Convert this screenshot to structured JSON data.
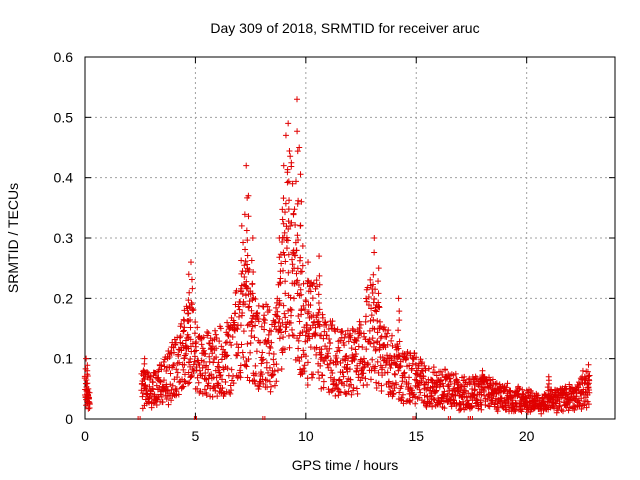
{
  "chart_data": {
    "type": "scatter",
    "title": "Day 309 of 2018, SRMTID for receiver aruc",
    "xlabel": "GPS time / hours",
    "ylabel": "SRMTID / TECUs",
    "xlim": [
      0,
      24
    ],
    "ylim": [
      0,
      0.6
    ],
    "xticks": [
      0,
      5,
      10,
      15,
      20
    ],
    "yticks": [
      0,
      0.1,
      0.2,
      0.3,
      0.4,
      0.5,
      0.6
    ],
    "xtick_labels": [
      "0",
      "5",
      "10",
      "15",
      "20"
    ],
    "ytick_labels": [
      "0",
      "0.1",
      "0.2",
      "0.3",
      "0.4",
      "0.5",
      "0.6"
    ],
    "grid": true,
    "legend": "none",
    "marker": "+",
    "color": "#e00000",
    "envelope": [
      [
        0.0,
        0.06
      ],
      [
        0.2,
        0.02
      ],
      [
        2.6,
        0.06
      ],
      [
        3.2,
        0.06
      ],
      [
        3.8,
        0.08
      ],
      [
        4.4,
        0.12
      ],
      [
        4.8,
        0.15
      ],
      [
        5.2,
        0.1
      ],
      [
        5.6,
        0.1
      ],
      [
        6.2,
        0.11
      ],
      [
        6.6,
        0.12
      ],
      [
        7.0,
        0.18
      ],
      [
        7.3,
        0.2
      ],
      [
        7.8,
        0.13
      ],
      [
        8.2,
        0.14
      ],
      [
        8.6,
        0.13
      ],
      [
        9.0,
        0.25
      ],
      [
        9.3,
        0.33
      ],
      [
        9.6,
        0.22
      ],
      [
        10.0,
        0.16
      ],
      [
        10.4,
        0.18
      ],
      [
        10.8,
        0.12
      ],
      [
        11.2,
        0.12
      ],
      [
        11.8,
        0.1
      ],
      [
        12.4,
        0.11
      ],
      [
        12.9,
        0.17
      ],
      [
        13.3,
        0.14
      ],
      [
        13.8,
        0.1
      ],
      [
        14.4,
        0.08
      ],
      [
        15.0,
        0.08
      ],
      [
        15.6,
        0.06
      ],
      [
        16.3,
        0.06
      ],
      [
        17.0,
        0.05
      ],
      [
        17.6,
        0.05
      ],
      [
        18.2,
        0.05
      ],
      [
        19.0,
        0.04
      ],
      [
        20.0,
        0.035
      ],
      [
        20.8,
        0.03
      ],
      [
        21.6,
        0.04
      ],
      [
        22.2,
        0.045
      ],
      [
        22.8,
        0.06
      ]
    ],
    "peaks": [
      [
        0.05,
        0.1
      ],
      [
        0.1,
        0.08
      ],
      [
        0.15,
        0.05
      ],
      [
        2.7,
        0.1
      ],
      [
        4.5,
        0.18
      ],
      [
        4.7,
        0.24
      ],
      [
        4.8,
        0.26
      ],
      [
        7.1,
        0.32
      ],
      [
        7.3,
        0.42
      ],
      [
        7.4,
        0.37
      ],
      [
        7.6,
        0.3
      ],
      [
        8.8,
        0.3
      ],
      [
        9.0,
        0.42
      ],
      [
        9.1,
        0.47
      ],
      [
        9.2,
        0.49
      ],
      [
        9.4,
        0.39
      ],
      [
        9.6,
        0.53
      ],
      [
        9.7,
        0.45
      ],
      [
        9.8,
        0.36
      ],
      [
        10.1,
        0.26
      ],
      [
        10.6,
        0.27
      ],
      [
        13.1,
        0.3
      ],
      [
        13.3,
        0.25
      ],
      [
        14.2,
        0.2
      ],
      [
        18.0,
        0.08
      ],
      [
        21.0,
        0.07
      ],
      [
        22.8,
        0.09
      ]
    ],
    "zero_points": [
      2.45,
      5.0,
      8.1,
      14.9,
      16.5,
      17.4,
      17.5
    ]
  }
}
